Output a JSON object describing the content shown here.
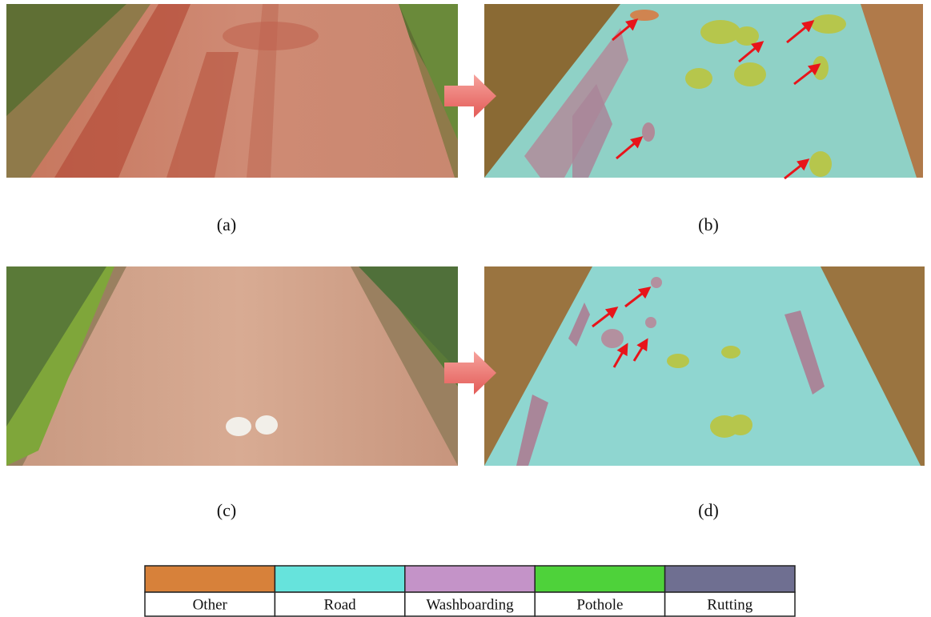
{
  "panels": [
    {
      "label": "(a)"
    },
    {
      "label": "(b)"
    },
    {
      "label": "(c)"
    },
    {
      "label": "(d)"
    }
  ],
  "legend": [
    {
      "name": "Other",
      "color": "#d7813a"
    },
    {
      "name": "Road",
      "color": "#66e3dc"
    },
    {
      "name": "Washboarding",
      "color": "#c493c8"
    },
    {
      "name": "Pothole",
      "color": "#4ed23a"
    },
    {
      "name": "Rutting",
      "color": "#6f6f91"
    }
  ]
}
